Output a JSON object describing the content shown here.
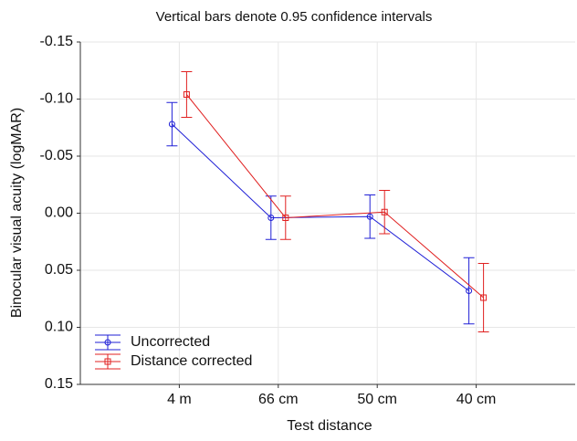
{
  "chart_data": {
    "type": "line",
    "title": "Vertical bars denote 0.95 confidence intervals",
    "x_label": "Test distance",
    "y_label": "Binocular visual acuity (logMAR)",
    "categories": [
      "4 m",
      "66 cm",
      "50 cm",
      "40 cm"
    ],
    "series": [
      {
        "name": "Uncorrected",
        "color": "#1f1fd6",
        "marker": "circle",
        "values": [
          -0.078,
          0.004,
          0.003,
          0.068
        ],
        "errors": [
          0.019,
          0.019,
          0.019,
          0.029
        ]
      },
      {
        "name": "Distance corrected",
        "color": "#e02020",
        "marker": "square",
        "values": [
          -0.104,
          0.004,
          -0.001,
          0.074
        ],
        "errors": [
          0.02,
          0.019,
          0.019,
          0.03
        ]
      }
    ],
    "ylim": [
      -0.15,
      0.15
    ],
    "invert_y": true,
    "yticks": [
      {
        "value": -0.15,
        "label": "-0.15"
      },
      {
        "value": -0.1,
        "label": "-0.10"
      },
      {
        "value": -0.05,
        "label": "-0.05"
      },
      {
        "value": 0,
        "label": "0.00"
      },
      {
        "value": 0.05,
        "label": "0.05"
      },
      {
        "value": 0.1,
        "label": "0.10"
      },
      {
        "value": 0.15,
        "label": "0.15"
      }
    ],
    "grid": true,
    "legend": "lower left"
  }
}
